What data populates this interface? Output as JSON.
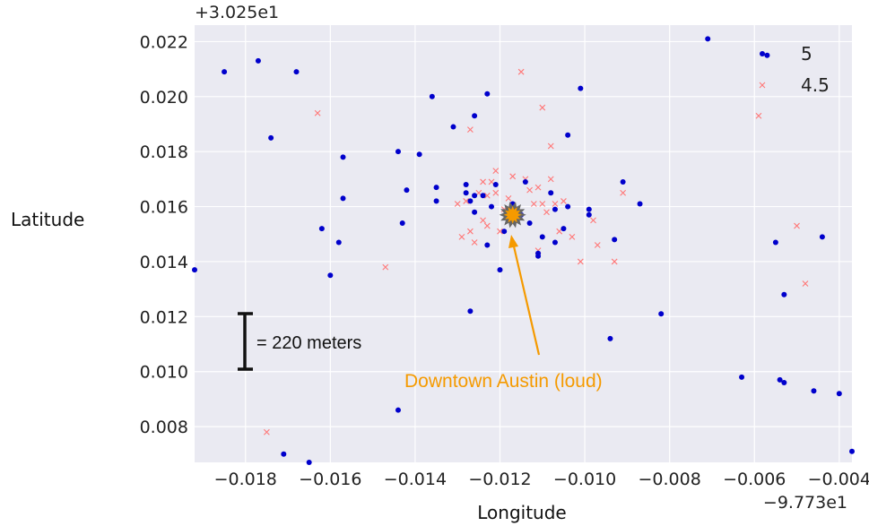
{
  "chart_data": {
    "type": "scatter",
    "title": "",
    "xlabel": "Longitude",
    "ylabel": "Latitude",
    "x_offset_label": "−9.773e1",
    "y_offset_label": "+3.025e1",
    "xlim": [
      -0.0192,
      -0.0037
    ],
    "ylim": [
      0.0067,
      0.0226
    ],
    "x_ticks": [
      -0.018,
      -0.016,
      -0.014,
      -0.012,
      -0.01,
      -0.008,
      -0.006,
      -0.004
    ],
    "x_tick_labels": [
      "−0.018",
      "−0.016",
      "−0.014",
      "−0.012",
      "−0.010",
      "−0.008",
      "−0.006",
      "−0.004"
    ],
    "y_ticks": [
      0.008,
      0.01,
      0.012,
      0.014,
      0.016,
      0.018,
      0.02,
      0.022
    ],
    "y_tick_labels": [
      "0.008",
      "0.010",
      "0.012",
      "0.014",
      "0.016",
      "0.018",
      "0.020",
      "0.022"
    ],
    "grid": true,
    "legend_position": "top-right",
    "series": [
      {
        "name": "5",
        "marker": "dot",
        "color": "#0000cc",
        "points": [
          [
            -0.0192,
            0.0137
          ],
          [
            -0.0185,
            0.0209
          ],
          [
            -0.0177,
            0.0213
          ],
          [
            -0.0174,
            0.0185
          ],
          [
            -0.0168,
            0.0209
          ],
          [
            -0.0162,
            0.0152
          ],
          [
            -0.016,
            0.0135
          ],
          [
            -0.0158,
            0.0147
          ],
          [
            -0.0157,
            0.0163
          ],
          [
            -0.0157,
            0.0178
          ],
          [
            -0.0171,
            0.007
          ],
          [
            -0.0165,
            0.0067
          ],
          [
            -0.0144,
            0.018
          ],
          [
            -0.0143,
            0.0154
          ],
          [
            -0.0142,
            0.0166
          ],
          [
            -0.0144,
            0.0086
          ],
          [
            -0.0139,
            0.0179
          ],
          [
            -0.0136,
            0.02
          ],
          [
            -0.0135,
            0.0167
          ],
          [
            -0.0135,
            0.0162
          ],
          [
            -0.0131,
            0.0189
          ],
          [
            -0.0128,
            0.0168
          ],
          [
            -0.0128,
            0.0165
          ],
          [
            -0.0127,
            0.0122
          ],
          [
            -0.0127,
            0.0162
          ],
          [
            -0.0126,
            0.0193
          ],
          [
            -0.0126,
            0.0164
          ],
          [
            -0.0126,
            0.0158
          ],
          [
            -0.0124,
            0.0164
          ],
          [
            -0.0123,
            0.0146
          ],
          [
            -0.0123,
            0.0201
          ],
          [
            -0.0122,
            0.016
          ],
          [
            -0.0121,
            0.0168
          ],
          [
            -0.012,
            0.0137
          ],
          [
            -0.0119,
            0.0151
          ],
          [
            -0.0118,
            0.0156
          ],
          [
            -0.0117,
            0.0161
          ],
          [
            -0.0115,
            0.0157
          ],
          [
            -0.0114,
            0.0169
          ],
          [
            -0.0113,
            0.0154
          ],
          [
            -0.0111,
            0.0143
          ],
          [
            -0.0111,
            0.0142
          ],
          [
            -0.011,
            0.0149
          ],
          [
            -0.0108,
            0.0165
          ],
          [
            -0.0107,
            0.0159
          ],
          [
            -0.0107,
            0.0147
          ],
          [
            -0.0105,
            0.0152
          ],
          [
            -0.0104,
            0.016
          ],
          [
            -0.0104,
            0.0186
          ],
          [
            -0.0101,
            0.0203
          ],
          [
            -0.0099,
            0.0159
          ],
          [
            -0.0099,
            0.0157
          ],
          [
            -0.0094,
            0.0112
          ],
          [
            -0.0093,
            0.0148
          ],
          [
            -0.0091,
            0.0169
          ],
          [
            -0.0087,
            0.0161
          ],
          [
            -0.0082,
            0.0121
          ],
          [
            -0.0071,
            0.0221
          ],
          [
            -0.0063,
            0.0098
          ],
          [
            -0.0057,
            0.0215
          ],
          [
            -0.0055,
            0.0147
          ],
          [
            -0.0054,
            0.0097
          ],
          [
            -0.0053,
            0.0096
          ],
          [
            -0.0053,
            0.0128
          ],
          [
            -0.0046,
            0.0093
          ],
          [
            -0.0044,
            0.0149
          ],
          [
            -0.004,
            0.0092
          ],
          [
            -0.0037,
            0.0071
          ]
        ]
      },
      {
        "name": "4.5",
        "marker": "x",
        "color": "#ff7777",
        "points": [
          [
            -0.0163,
            0.0194
          ],
          [
            -0.0147,
            0.0138
          ],
          [
            -0.0175,
            0.0078
          ],
          [
            -0.013,
            0.0161
          ],
          [
            -0.0129,
            0.0149
          ],
          [
            -0.0128,
            0.0162
          ],
          [
            -0.0127,
            0.0188
          ],
          [
            -0.0127,
            0.0151
          ],
          [
            -0.0126,
            0.0147
          ],
          [
            -0.0125,
            0.0165
          ],
          [
            -0.0124,
            0.0169
          ],
          [
            -0.0124,
            0.0155
          ],
          [
            -0.0123,
            0.0164
          ],
          [
            -0.0123,
            0.0153
          ],
          [
            -0.0122,
            0.0169
          ],
          [
            -0.0121,
            0.0173
          ],
          [
            -0.0121,
            0.0165
          ],
          [
            -0.012,
            0.0151
          ],
          [
            -0.0119,
            0.0159
          ],
          [
            -0.0118,
            0.0163
          ],
          [
            -0.0117,
            0.0171
          ],
          [
            -0.0116,
            0.0155
          ],
          [
            -0.0115,
            0.0209
          ],
          [
            -0.0114,
            0.017
          ],
          [
            -0.0113,
            0.0166
          ],
          [
            -0.0112,
            0.0161
          ],
          [
            -0.0111,
            0.0167
          ],
          [
            -0.0111,
            0.0144
          ],
          [
            -0.011,
            0.0196
          ],
          [
            -0.011,
            0.0161
          ],
          [
            -0.0109,
            0.0158
          ],
          [
            -0.0108,
            0.0182
          ],
          [
            -0.0108,
            0.017
          ],
          [
            -0.0107,
            0.0161
          ],
          [
            -0.0106,
            0.0151
          ],
          [
            -0.0105,
            0.0162
          ],
          [
            -0.0103,
            0.0149
          ],
          [
            -0.0101,
            0.014
          ],
          [
            -0.0098,
            0.0155
          ],
          [
            -0.0097,
            0.0146
          ],
          [
            -0.0093,
            0.014
          ],
          [
            -0.0091,
            0.0165
          ],
          [
            -0.0059,
            0.0193
          ],
          [
            -0.005,
            0.0153
          ],
          [
            -0.0048,
            0.0132
          ]
        ]
      }
    ],
    "annotations": [
      {
        "text": "Downtown Austin (loud)",
        "color": "#f59a00",
        "target": [
          -0.0117,
          0.0157
        ]
      },
      {
        "text": "= 220 meters",
        "type": "scale-bar",
        "y_range": [
          0.01,
          0.012
        ]
      }
    ]
  }
}
